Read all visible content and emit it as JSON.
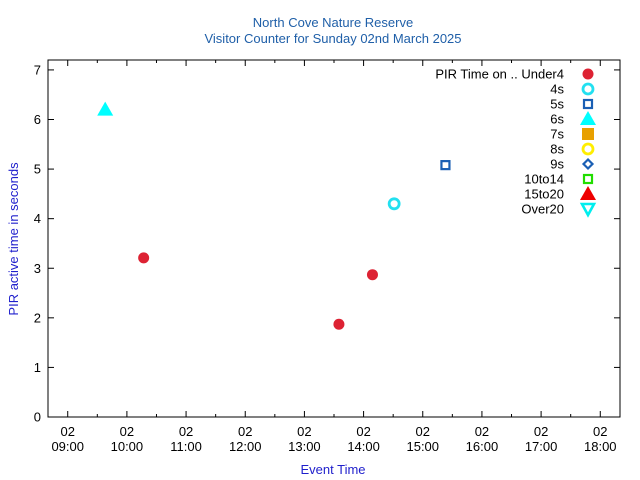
{
  "chart_data": {
    "type": "scatter",
    "title": "North Cove Nature Reserve",
    "subtitle": "Visitor Counter for Sunday 02nd March 2025",
    "xlabel": "Event Time",
    "ylabel": "PIR active time in seconds",
    "xlim": [
      "02/03/2025 08:40",
      "02/03/2025 18:20"
    ],
    "ylim": [
      0,
      7.2
    ],
    "x_ticks": [
      "02\n09:00",
      "02\n10:00",
      "02\n11:00",
      "02\n12:00",
      "02\n13:00",
      "02\n14:00",
      "02\n15:00",
      "02\n16:00",
      "02\n17:00",
      "02\n18:00"
    ],
    "x_tick_times": [
      "09:00",
      "10:00",
      "11:00",
      "12:00",
      "13:00",
      "14:00",
      "15:00",
      "16:00",
      "17:00",
      "18:00"
    ],
    "y_ticks": [
      0,
      1,
      2,
      3,
      4,
      5,
      6,
      7
    ],
    "grid": false,
    "legend_position": "top-right",
    "series": [
      {
        "name": "PIR Time on .. Under4",
        "marker": "circle-filled",
        "color": "#dd2233",
        "points": [
          {
            "x": "10:17",
            "y": 3.21
          },
          {
            "x": "13:35",
            "y": 1.87
          },
          {
            "x": "14:09",
            "y": 2.87
          }
        ]
      },
      {
        "name": "4s",
        "marker": "circle-open",
        "color": "#22e0f0",
        "points": [
          {
            "x": "14:31",
            "y": 4.3
          }
        ]
      },
      {
        "name": "5s",
        "marker": "square-open",
        "color": "#1a5fb4",
        "points": [
          {
            "x": "15:23",
            "y": 5.08
          }
        ]
      },
      {
        "name": "6s",
        "marker": "triangle-filled",
        "color": "#00ffff",
        "points": [
          {
            "x": "09:38",
            "y": 6.2
          }
        ]
      },
      {
        "name": "7s",
        "marker": "square-filled",
        "color": "#e8a000",
        "points": []
      },
      {
        "name": "8s",
        "marker": "circle-open",
        "color": "#ffee00",
        "points": []
      },
      {
        "name": "9s",
        "marker": "diamond-open",
        "color": "#1a5fb4",
        "points": []
      },
      {
        "name": "10to14",
        "marker": "square-open",
        "color": "#22dd00",
        "points": []
      },
      {
        "name": "15to20",
        "marker": "triangle-filled",
        "color": "#ee0000",
        "points": []
      },
      {
        "name": "Over20",
        "marker": "triangle-down-open",
        "color": "#00eeee",
        "points": []
      }
    ]
  }
}
